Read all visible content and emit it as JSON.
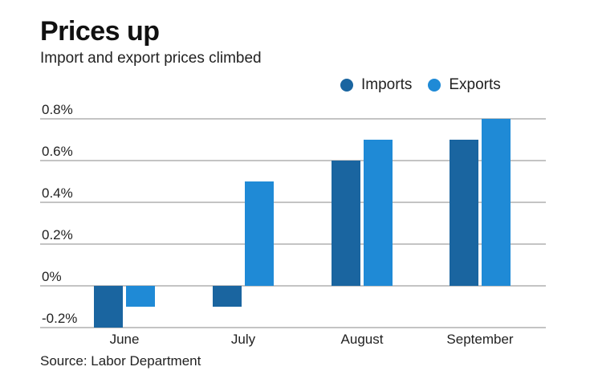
{
  "chart_data": {
    "type": "bar",
    "title": "Prices up",
    "subtitle": "Import and export prices climbed",
    "source": "Source: Labor Department",
    "categories": [
      "June",
      "July",
      "August",
      "September"
    ],
    "series": [
      {
        "name": "Imports",
        "color": "#1a65a0",
        "values": [
          -0.2,
          -0.1,
          0.6,
          0.7
        ]
      },
      {
        "name": "Exports",
        "color": "#1f8ad6",
        "values": [
          -0.1,
          0.5,
          0.7,
          0.8
        ]
      }
    ],
    "yticks": [
      {
        "value": -0.2,
        "label": "-0.2%"
      },
      {
        "value": 0,
        "label": "0%"
      },
      {
        "value": 0.2,
        "label": "0.2%"
      },
      {
        "value": 0.4,
        "label": "0.4%"
      },
      {
        "value": 0.6,
        "label": "0.6%"
      },
      {
        "value": 0.8,
        "label": "0.8%"
      }
    ],
    "ylim": [
      -0.2,
      0.8
    ],
    "xlabel": "",
    "ylabel": "",
    "grid": true,
    "legend": "top-right"
  }
}
